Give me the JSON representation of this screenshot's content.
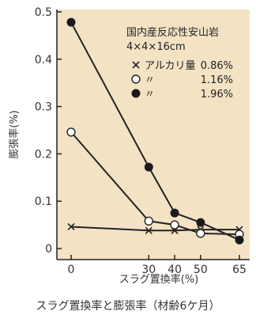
{
  "colors": {
    "plot_background": "#f3e3c4",
    "page_background": "#ffffff",
    "axis": "#222222",
    "series_line": "#222222",
    "marker_dark": "#1a1a1a",
    "marker_open_fill": "#ffffff"
  },
  "caption": "スラグ置換率と膨張率（材齢6ケ月）",
  "chart_data": {
    "type": "line",
    "title": "",
    "xlabel": "スラグ置換率(%)",
    "ylabel": "膨張率(%)",
    "xlim": [
      0,
      65
    ],
    "ylim": [
      0,
      0.5
    ],
    "x_ticks": [
      0,
      30,
      40,
      50,
      65
    ],
    "y_ticks": [
      0,
      0.1,
      0.2,
      0.3,
      0.4,
      0.5
    ],
    "y_tick_labels": [
      "0",
      "0.1",
      "0.2",
      "0.3",
      "0.4",
      "0.5"
    ],
    "grid": false,
    "legend_position": "top-right",
    "annotation": {
      "line1": "国内産反応性安山岩",
      "line2": "4×4×16cm"
    },
    "legend": [
      {
        "marker": "x-mark",
        "prefix": "アルカリ量",
        "value": "0.86%"
      },
      {
        "marker": "open-circle",
        "prefix": "〃",
        "value": "1.16%"
      },
      {
        "marker": "filled-circle",
        "prefix": "〃",
        "value": "1.96%"
      }
    ],
    "series": [
      {
        "name": "アルカリ量 0.86%",
        "marker": "x-mark",
        "x": [
          0,
          30,
          40,
          50,
          65
        ],
        "values": [
          0.046,
          0.038,
          0.038,
          0.04,
          0.04
        ]
      },
      {
        "name": "アルカリ量 1.16%",
        "marker": "open-circle",
        "x": [
          0,
          30,
          40,
          50,
          65
        ],
        "values": [
          0.246,
          0.058,
          0.05,
          0.032,
          0.03
        ]
      },
      {
        "name": "アルカリ量 1.96%",
        "marker": "filled-circle",
        "x": [
          0,
          30,
          40,
          50,
          65
        ],
        "values": [
          0.478,
          0.172,
          0.075,
          0.055,
          0.018
        ]
      }
    ]
  }
}
